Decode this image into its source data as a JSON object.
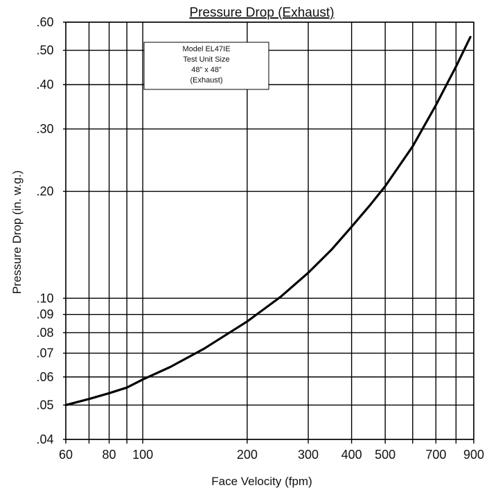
{
  "chart_data": {
    "type": "line",
    "title": "Pressure Drop (Exhaust)",
    "xlabel": "Face Velocity (fpm)",
    "ylabel": "Pressure Drop (in. w.g.)",
    "xscale": "log",
    "yscale": "log",
    "xlim": [
      60,
      900
    ],
    "ylim": [
      0.04,
      0.6
    ],
    "x_ticks": [
      {
        "value": 60,
        "label": "60"
      },
      {
        "value": 80,
        "label": "80"
      },
      {
        "value": 100,
        "label": "100"
      },
      {
        "value": 200,
        "label": "200"
      },
      {
        "value": 300,
        "label": "300"
      },
      {
        "value": 400,
        "label": "400"
      },
      {
        "value": 500,
        "label": "500"
      },
      {
        "value": 700,
        "label": "700"
      },
      {
        "value": 900,
        "label": "900"
      }
    ],
    "x_gridlines": [
      60,
      70,
      80,
      90,
      100,
      200,
      300,
      400,
      500,
      600,
      700,
      800,
      900
    ],
    "y_ticks": [
      {
        "value": 0.04,
        "label": ".04"
      },
      {
        "value": 0.05,
        "label": ".05"
      },
      {
        "value": 0.06,
        "label": ".06"
      },
      {
        "value": 0.07,
        "label": ".07"
      },
      {
        "value": 0.08,
        "label": ".08"
      },
      {
        "value": 0.09,
        "label": ".09"
      },
      {
        "value": 0.1,
        "label": ".10"
      },
      {
        "value": 0.2,
        "label": ".20"
      },
      {
        "value": 0.3,
        "label": ".30"
      },
      {
        "value": 0.4,
        "label": ".40"
      },
      {
        "value": 0.5,
        "label": ".50"
      },
      {
        "value": 0.6,
        "label": ".60"
      }
    ],
    "grid": true,
    "legend_position": "top-left",
    "legend_lines": [
      "Model EL47IE",
      "Test Unit Size",
      "48” x 48”",
      "(Exhaust)"
    ],
    "series": [
      {
        "x": [
          60,
          70,
          80,
          90,
          100,
          120,
          150,
          200,
          250,
          300,
          350,
          400,
          450,
          500,
          600,
          700,
          800,
          880
        ],
        "y": [
          0.05,
          0.052,
          0.054,
          0.056,
          0.059,
          0.064,
          0.072,
          0.086,
          0.101,
          0.118,
          0.137,
          0.159,
          0.182,
          0.207,
          0.268,
          0.35,
          0.45,
          0.545
        ]
      }
    ],
    "colors": {
      "line": "#000000",
      "grid": "#000000"
    }
  }
}
